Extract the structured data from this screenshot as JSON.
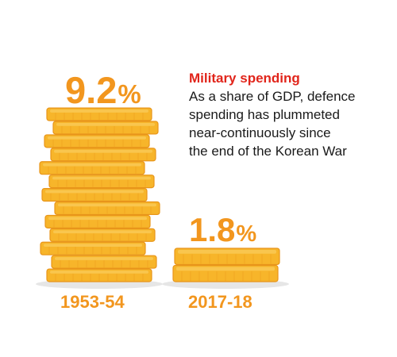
{
  "chart_data": {
    "type": "bar",
    "title": "",
    "xlabel": "",
    "ylabel": "",
    "categories": [
      "1953-54",
      "2017-18"
    ],
    "values": [
      9.2,
      1.8
    ],
    "data_labels": [
      "9.2",
      "1.8"
    ],
    "unit_suffix": "%",
    "annotation": {
      "title": "Military spending",
      "lines": [
        "As a share of GDP, defence",
        "spending has plummeted",
        "near-continuously since",
        "the end of the Korean War"
      ]
    },
    "grid": false,
    "legend": "none"
  },
  "colors": {
    "coin_face": "#f7b52a",
    "coin_edge": "#e8951a",
    "coin_highlight": "#fbd46b",
    "label_orange": "#f2961e",
    "annotation_red": "#e1251b",
    "text_dark": "#1a1a1a",
    "shadow": "#e6e6e6"
  }
}
